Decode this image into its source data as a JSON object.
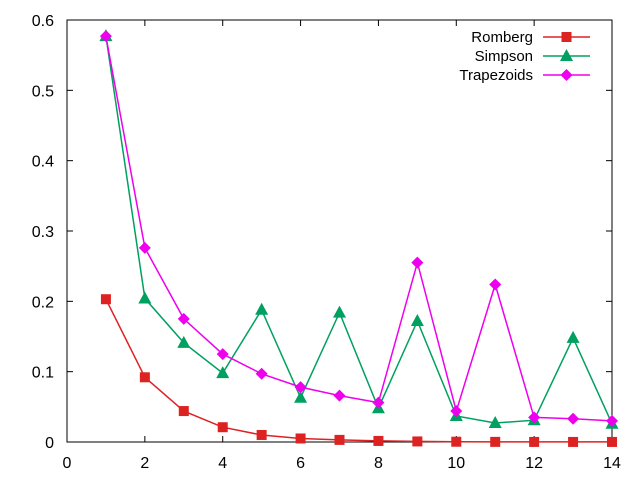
{
  "chart_data": {
    "type": "line",
    "title": "",
    "xlabel": "",
    "ylabel": "",
    "xlim": [
      0,
      14
    ],
    "ylim": [
      0,
      0.6
    ],
    "xticks": [
      0,
      2,
      4,
      6,
      8,
      10,
      12,
      14
    ],
    "yticks": [
      0,
      0.1,
      0.2,
      0.3,
      0.4,
      0.5,
      0.6
    ],
    "xtick_labels": [
      "0",
      "2",
      "4",
      "6",
      "8",
      "10",
      "12",
      "14"
    ],
    "ytick_labels": [
      "0",
      "0.1",
      "0.2",
      "0.3",
      "0.4",
      "0.5",
      "0.6"
    ],
    "grid": false,
    "legend_position": "top-right",
    "x": [
      1,
      2,
      3,
      4,
      5,
      6,
      7,
      8,
      9,
      10,
      11,
      12,
      13,
      14
    ],
    "series": [
      {
        "name": "Romberg",
        "color": "#dd2222",
        "marker": "square",
        "values": [
          0.203,
          0.092,
          0.044,
          0.021,
          0.01,
          0.005,
          0.003,
          0.0015,
          0.0008,
          0.0004,
          0.0002,
          0.0001,
          0.0001,
          0.0001
        ]
      },
      {
        "name": "Simpson",
        "color": "#00a060",
        "marker": "triangle",
        "values": [
          0.577,
          0.204,
          0.141,
          0.098,
          0.188,
          0.063,
          0.184,
          0.048,
          0.172,
          0.037,
          0.027,
          0.031,
          0.148,
          0.026
        ]
      },
      {
        "name": "Trapezoids",
        "color": "#ee00ee",
        "marker": "diamond",
        "values": [
          0.577,
          0.276,
          0.175,
          0.125,
          0.097,
          0.078,
          0.066,
          0.056,
          0.255,
          0.044,
          0.224,
          0.035,
          0.033,
          0.03
        ]
      }
    ]
  }
}
